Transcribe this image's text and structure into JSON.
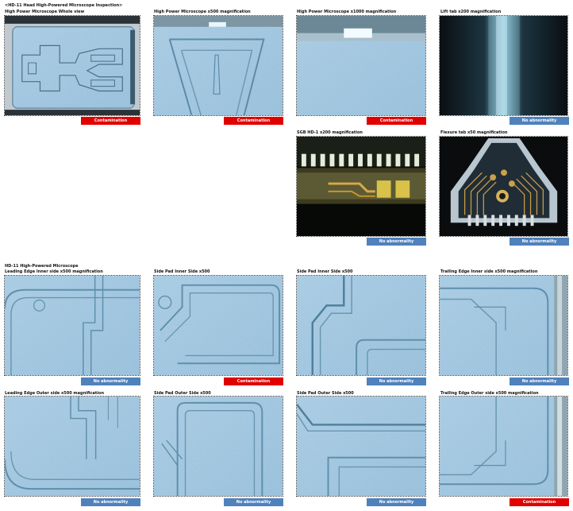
{
  "header": {
    "title": "<HD-11 Head High-Powered Microscope Inspection>",
    "section2": "HD-11 High-Powered Microscope"
  },
  "colors": {
    "no_abnormality": "#4f81bd",
    "contamination": "#e00000"
  },
  "panels": [
    {
      "label": "High Power Microscope Whole view",
      "status": "Contamination",
      "state": "ng"
    },
    {
      "label": "High Power Microscope x500 magnification",
      "status": "Contamination",
      "state": "ng"
    },
    {
      "label": "High Power Microscope x1000 magnification",
      "status": "Contamination",
      "state": "ng"
    },
    {
      "label": "Lift tab x200 magnification",
      "status": "No abnormality",
      "state": "ok"
    },
    {
      "label": "SGB HD-1 x200 magnification",
      "status": "No abnormality",
      "state": "ok"
    },
    {
      "label": "Flexure tab x50 magnification",
      "status": "No abnormality",
      "state": "ok"
    },
    {
      "label": "Leading Edge Inner side x500 magnification",
      "status": "No abnormality",
      "state": "ok"
    },
    {
      "label": "Side Pad Inner Side x500",
      "status": "Contamination",
      "state": "ng"
    },
    {
      "label": "Side Pad Inner Side x500",
      "status": "No abnormality",
      "state": "ok"
    },
    {
      "label": "Trailing Edge Inner side x500 magnification",
      "status": "No abnormality",
      "state": "ok"
    },
    {
      "label": "Leading Edge Outer side x500 magnification",
      "status": "No abnormality",
      "state": "ok"
    },
    {
      "label": "Side Pad Outer Side x500",
      "status": "No abnormality",
      "state": "ok"
    },
    {
      "label": "Side Pad Outer Side x500",
      "status": "No abnormality",
      "state": "ok"
    },
    {
      "label": "Trailing Edge Outer side x500 magnification",
      "status": "Contamination",
      "state": "ng"
    }
  ]
}
